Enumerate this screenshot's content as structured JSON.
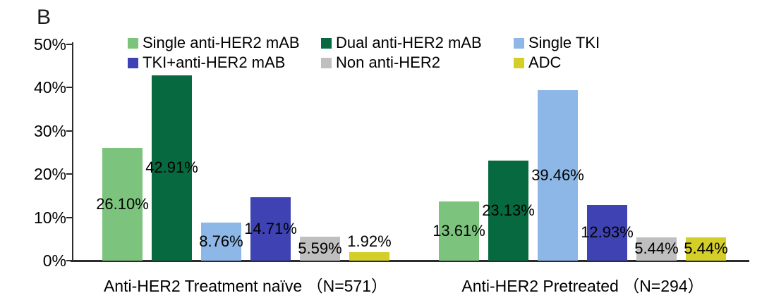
{
  "panel_label": "B",
  "chart_data": {
    "type": "bar",
    "title": "",
    "xlabel": "",
    "ylabel": "",
    "groups": [
      "Anti-HER2 Treatment naïve （N=571）",
      "Anti-HER2 Pretreated （N=294）"
    ],
    "series": [
      {
        "name": "Single anti-HER2 mAB",
        "color": "#7CC47E",
        "values": [
          26.1,
          13.61
        ],
        "labels": [
          "26.10%",
          "13.61%"
        ]
      },
      {
        "name": "Dual anti-HER2 mAB",
        "color": "#07693F",
        "values": [
          42.91,
          23.13
        ],
        "labels": [
          "42.91%",
          "23.13%"
        ]
      },
      {
        "name": "Single TKI",
        "color": "#8DB7E6",
        "values": [
          8.76,
          39.46
        ],
        "labels": [
          "8.76%",
          "39.46%"
        ]
      },
      {
        "name": "TKI+anti-HER2 mAB",
        "color": "#3F42B2",
        "values": [
          14.71,
          12.93
        ],
        "labels": [
          "14.71%",
          "12.93%"
        ]
      },
      {
        "name": "Non anti-HER2",
        "color": "#BFBFBF",
        "values": [
          5.59,
          5.44
        ],
        "labels": [
          "5.59%",
          "5.44%"
        ]
      },
      {
        "name": "ADC",
        "color": "#D4CE29",
        "values": [
          1.92,
          5.44
        ],
        "labels": [
          "1.92%",
          "5.44%"
        ]
      }
    ],
    "y_axis": {
      "tick_labels": [
        "0%",
        "10%",
        "20%",
        "30%",
        "40%",
        "50%"
      ],
      "min": 0,
      "max": 50,
      "tick_step": 10
    },
    "legend": {
      "position": "top",
      "columns": 3,
      "rows": 2
    },
    "grid": false,
    "axis_color": "#2b2b2b",
    "text_color": "#000000",
    "background_color": "#ffffff"
  }
}
